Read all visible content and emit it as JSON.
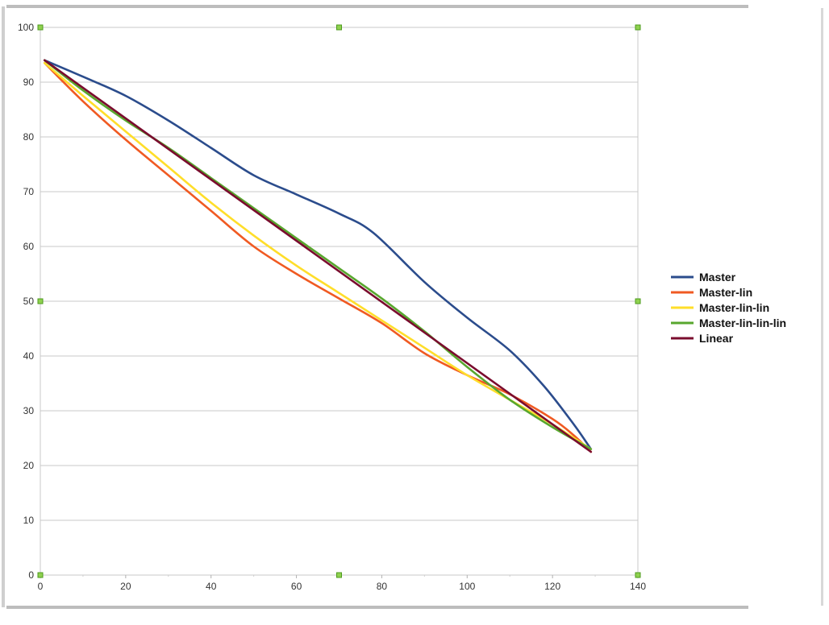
{
  "chart_data": {
    "type": "line",
    "title": "",
    "xlabel": "",
    "ylabel": "",
    "xlim": [
      0,
      140
    ],
    "ylim": [
      0,
      100
    ],
    "x_ticks": [
      0,
      20,
      40,
      60,
      80,
      100,
      120,
      140
    ],
    "y_ticks": [
      0,
      10,
      20,
      30,
      40,
      50,
      60,
      70,
      80,
      90,
      100
    ],
    "grid": "horizontal",
    "legend_position": "right",
    "series": [
      {
        "name": "Master",
        "color": "#2b4c8c",
        "x": [
          1,
          10,
          20,
          30,
          40,
          50,
          60,
          70,
          78,
          90,
          100,
          110,
          118,
          125,
          129
        ],
        "y": [
          94,
          91,
          87.5,
          83,
          78,
          73,
          69.5,
          66,
          62.5,
          53.5,
          47,
          41,
          34.5,
          27.5,
          23
        ]
      },
      {
        "name": "Master-lin",
        "color": "#f05a22",
        "x": [
          1,
          10,
          20,
          30,
          40,
          50,
          60,
          70,
          80,
          90,
          100,
          110,
          120,
          125,
          129
        ],
        "y": [
          93.5,
          86.5,
          79.5,
          73,
          66.5,
          60,
          55,
          50.5,
          46,
          40.5,
          36.5,
          33,
          28.5,
          25.5,
          22.5
        ]
      },
      {
        "name": "Master-lin-lin",
        "color": "#ffde2a",
        "x": [
          1,
          10,
          20,
          30,
          40,
          50,
          60,
          70,
          80,
          90,
          100,
          110,
          120,
          129
        ],
        "y": [
          93.5,
          87.5,
          81,
          74.5,
          68,
          62,
          56.5,
          51.5,
          46.5,
          41.5,
          36.5,
          32,
          27.5,
          23
        ]
      },
      {
        "name": "Master-lin-lin-lin",
        "color": "#58a72e",
        "x": [
          1,
          10,
          20,
          30,
          40,
          50,
          60,
          70,
          80,
          90,
          100,
          110,
          120,
          129
        ],
        "y": [
          94,
          88.5,
          83,
          78,
          72.5,
          67,
          61.5,
          56,
          50.5,
          44.5,
          38,
          32,
          27,
          23
        ]
      },
      {
        "name": "Linear",
        "color": "#7a0c2e",
        "x": [
          1,
          129
        ],
        "y": [
          94,
          22.5
        ]
      }
    ]
  }
}
